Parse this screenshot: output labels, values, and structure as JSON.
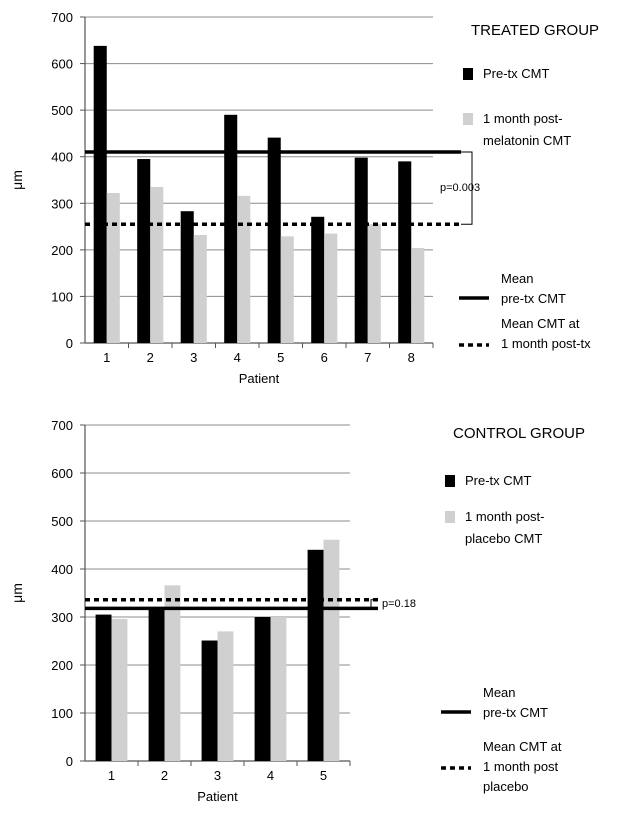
{
  "chart_data": [
    {
      "type": "bar",
      "title": "TREATED GROUP",
      "xlabel": "Patient",
      "ylabel": "μm",
      "ylim": [
        0,
        700
      ],
      "yticks": [
        0,
        100,
        200,
        300,
        400,
        500,
        600,
        700
      ],
      "grid": true,
      "legend_position": "right",
      "categories": [
        "1",
        "2",
        "3",
        "4",
        "5",
        "6",
        "7",
        "8"
      ],
      "series": [
        {
          "name": "Pre-tx CMT",
          "color": "#000000",
          "values": [
            638,
            395,
            283,
            490,
            441,
            271,
            398,
            390
          ]
        },
        {
          "name": "1 month post-melatonin CMT",
          "label_lines": [
            "1 month post-",
            "melatonin CMT"
          ],
          "color": "#d0d0d0",
          "values": [
            322,
            335,
            232,
            316,
            229,
            235,
            255,
            204
          ]
        }
      ],
      "reference_lines": [
        {
          "name": "Mean pre-tx CMT",
          "label_lines": [
            "Mean",
            "pre-tx CMT"
          ],
          "style": "solid",
          "value": 410
        },
        {
          "name": "Mean CMT at 1 month post-tx",
          "label_lines": [
            "Mean CMT at",
            "1 month post-tx"
          ],
          "style": "dotted",
          "value": 255
        }
      ],
      "annotation": "p=0.003"
    },
    {
      "type": "bar",
      "title": "CONTROL GROUP",
      "xlabel": "Patient",
      "ylabel": "μm",
      "ylim": [
        0,
        700
      ],
      "yticks": [
        0,
        100,
        200,
        300,
        400,
        500,
        600,
        700
      ],
      "grid": true,
      "legend_position": "right",
      "categories": [
        "1",
        "2",
        "3",
        "4",
        "5"
      ],
      "series": [
        {
          "name": "Pre-tx CMT",
          "color": "#000000",
          "values": [
            305,
            320,
            251,
            300,
            440
          ]
        },
        {
          "name": "1 month post-placebo CMT",
          "label_lines": [
            "1 month post-",
            "placebo CMT"
          ],
          "color": "#d0d0d0",
          "values": [
            296,
            366,
            270,
            300,
            461
          ]
        }
      ],
      "reference_lines": [
        {
          "name": "Mean pre-tx CMT",
          "label_lines": [
            "Mean",
            "pre-tx CMT"
          ],
          "style": "solid",
          "value": 318
        },
        {
          "name": "Mean CMT at 1 month post placebo",
          "label_lines": [
            "Mean CMT at",
            "1 month post",
            "placebo"
          ],
          "style": "dotted",
          "value": 336
        }
      ],
      "annotation": "p=0.18"
    }
  ]
}
